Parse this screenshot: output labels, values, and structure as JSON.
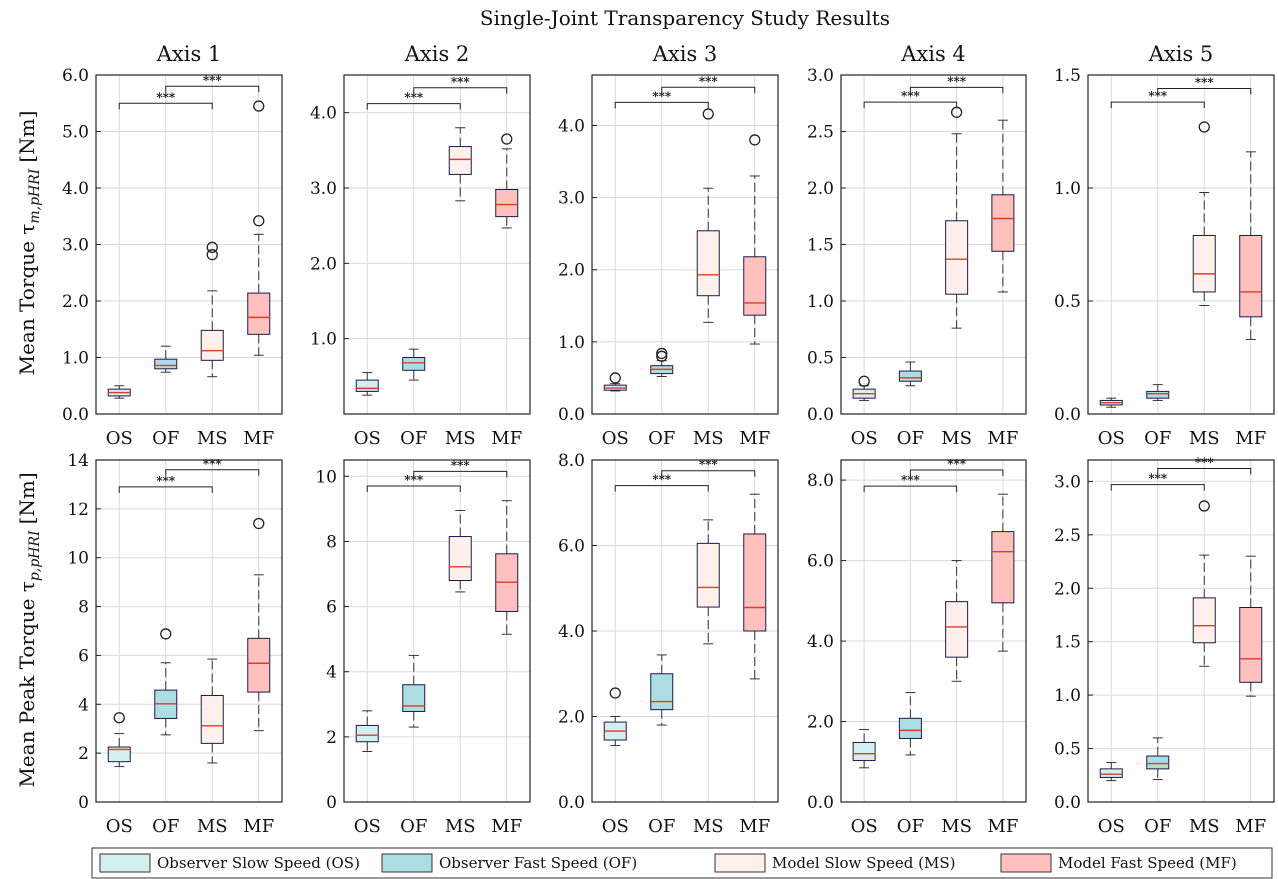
{
  "figure_title": "Single-Joint Transparency Study Results",
  "row_labels": [
    "Mean Torque τ",
    "Mean Peak Torque τ"
  ],
  "row_label_subscripts": [
    "m,pHRI",
    "p,pHRI"
  ],
  "row_label_unit": "[Nm]",
  "legend": [
    {
      "label": "Observer Slow Speed (OS)",
      "color": "#d4efef"
    },
    {
      "label": "Observer Fast Speed (OF)",
      "color": "#acdde2"
    },
    {
      "label": "Model Slow Speed (MS)",
      "color": "#fff0ee"
    },
    {
      "label": "Model Fast Speed (MF)",
      "color": "#ffc1bd"
    }
  ],
  "colors": {
    "median": "#e03a2a",
    "box_edge": "#1a1a4a",
    "whisker": "#333333",
    "grid": "#d9d9d9"
  },
  "chart_data": [
    {
      "type": "box",
      "title": "Axis 1",
      "ylim": [
        0,
        6.0
      ],
      "yticks": [
        0,
        1,
        2,
        3,
        4,
        5,
        6
      ],
      "ytick_labels": [
        "0.0",
        "1.0",
        "2.0",
        "3.0",
        "4.0",
        "5.0",
        "6.0"
      ],
      "categories": [
        "OS",
        "OF",
        "MS",
        "MF"
      ],
      "boxes": [
        {
          "wlo": 0.28,
          "q1": 0.32,
          "med": 0.38,
          "q3": 0.44,
          "whi": 0.5,
          "out": []
        },
        {
          "wlo": 0.74,
          "q1": 0.8,
          "med": 0.86,
          "q3": 0.97,
          "whi": 1.2,
          "out": []
        },
        {
          "wlo": 0.66,
          "q1": 0.95,
          "med": 1.12,
          "q3": 1.48,
          "whi": 2.18,
          "out": [
            2.82,
            2.95
          ]
        },
        {
          "wlo": 1.04,
          "q1": 1.41,
          "med": 1.71,
          "q3": 2.14,
          "whi": 3.18,
          "out": [
            3.42,
            5.45
          ]
        }
      ],
      "sig": [
        {
          "from": 0,
          "to": 2,
          "y": 5.5,
          "label": "***"
        },
        {
          "from": 1,
          "to": 3,
          "y": 5.8,
          "label": "***"
        }
      ]
    },
    {
      "type": "box",
      "title": "Axis 2",
      "ylim": [
        0,
        4.5
      ],
      "yticks": [
        1,
        2,
        3,
        4
      ],
      "ytick_labels": [
        "1.0",
        "2.0",
        "3.0",
        "4.0"
      ],
      "categories": [
        "OS",
        "OF",
        "MS",
        "MF"
      ],
      "boxes": [
        {
          "wlo": 0.25,
          "q1": 0.3,
          "med": 0.34,
          "q3": 0.45,
          "whi": 0.55,
          "out": []
        },
        {
          "wlo": 0.45,
          "q1": 0.58,
          "med": 0.68,
          "q3": 0.75,
          "whi": 0.86,
          "out": []
        },
        {
          "wlo": 2.83,
          "q1": 3.18,
          "med": 3.38,
          "q3": 3.55,
          "whi": 3.8,
          "out": []
        },
        {
          "wlo": 2.47,
          "q1": 2.62,
          "med": 2.78,
          "q3": 2.98,
          "whi": 3.52,
          "out": [
            3.65
          ]
        }
      ],
      "sig": [
        {
          "from": 0,
          "to": 2,
          "y": 4.12,
          "label": "***"
        },
        {
          "from": 1,
          "to": 3,
          "y": 4.33,
          "label": "***"
        }
      ]
    },
    {
      "type": "box",
      "title": "Axis 3",
      "ylim": [
        0,
        4.7
      ],
      "yticks": [
        0,
        1,
        2,
        3,
        4
      ],
      "ytick_labels": [
        "0.0",
        "1.0",
        "2.0",
        "3.0",
        "4.0"
      ],
      "categories": [
        "OS",
        "OF",
        "MS",
        "MF"
      ],
      "boxes": [
        {
          "wlo": 0.32,
          "q1": 0.33,
          "med": 0.36,
          "q3": 0.4,
          "whi": 0.42,
          "out": [
            0.5
          ]
        },
        {
          "wlo": 0.52,
          "q1": 0.56,
          "med": 0.62,
          "q3": 0.67,
          "whi": 0.74,
          "out": [
            0.8,
            0.84
          ]
        },
        {
          "wlo": 1.27,
          "q1": 1.64,
          "med": 1.93,
          "q3": 2.54,
          "whi": 3.13,
          "out": [
            4.16
          ]
        },
        {
          "wlo": 0.97,
          "q1": 1.37,
          "med": 1.54,
          "q3": 2.18,
          "whi": 3.3,
          "out": [
            3.8
          ]
        }
      ],
      "sig": [
        {
          "from": 0,
          "to": 2,
          "y": 4.32,
          "label": "***"
        },
        {
          "from": 1,
          "to": 3,
          "y": 4.53,
          "label": "***"
        }
      ]
    },
    {
      "type": "box",
      "title": "Axis 4",
      "ylim": [
        0,
        3.0
      ],
      "yticks": [
        0,
        0.5,
        1,
        1.5,
        2,
        2.5,
        3
      ],
      "ytick_labels": [
        "0.0",
        "0.5",
        "1.0",
        "1.5",
        "2.0",
        "2.5",
        "3.0"
      ],
      "categories": [
        "OS",
        "OF",
        "MS",
        "MF"
      ],
      "boxes": [
        {
          "wlo": 0.12,
          "q1": 0.14,
          "med": 0.18,
          "q3": 0.22,
          "whi": 0.25,
          "out": [
            0.29
          ]
        },
        {
          "wlo": 0.25,
          "q1": 0.29,
          "med": 0.32,
          "q3": 0.38,
          "whi": 0.46,
          "out": []
        },
        {
          "wlo": 0.76,
          "q1": 1.06,
          "med": 1.37,
          "q3": 1.71,
          "whi": 2.48,
          "out": [
            2.67
          ]
        },
        {
          "wlo": 1.08,
          "q1": 1.44,
          "med": 1.73,
          "q3": 1.94,
          "whi": 2.6,
          "out": []
        }
      ],
      "sig": [
        {
          "from": 0,
          "to": 2,
          "y": 2.76,
          "label": "***"
        },
        {
          "from": 1,
          "to": 3,
          "y": 2.89,
          "label": "***"
        }
      ]
    },
    {
      "type": "box",
      "title": "Axis 5",
      "ylim": [
        0,
        1.5
      ],
      "yticks": [
        0,
        0.5,
        1,
        1.5
      ],
      "ytick_labels": [
        "0.0",
        "0.5",
        "1.0",
        "1.5"
      ],
      "categories": [
        "OS",
        "OF",
        "MS",
        "MF"
      ],
      "boxes": [
        {
          "wlo": 0.03,
          "q1": 0.04,
          "med": 0.05,
          "q3": 0.06,
          "whi": 0.07,
          "out": []
        },
        {
          "wlo": 0.06,
          "q1": 0.07,
          "med": 0.09,
          "q3": 0.1,
          "whi": 0.13,
          "out": []
        },
        {
          "wlo": 0.48,
          "q1": 0.54,
          "med": 0.62,
          "q3": 0.79,
          "whi": 0.98,
          "out": [
            1.27
          ]
        },
        {
          "wlo": 0.33,
          "q1": 0.43,
          "med": 0.54,
          "q3": 0.79,
          "whi": 1.16,
          "out": []
        }
      ],
      "sig": [
        {
          "from": 0,
          "to": 2,
          "y": 1.38,
          "label": "***"
        },
        {
          "from": 1,
          "to": 3,
          "y": 1.44,
          "label": "***"
        }
      ]
    },
    {
      "type": "box",
      "title": "",
      "ylim": [
        0,
        14
      ],
      "yticks": [
        0,
        2,
        4,
        6,
        8,
        10,
        12,
        14
      ],
      "ytick_labels": [
        "0",
        "2",
        "4",
        "6",
        "8",
        "10",
        "12",
        "14"
      ],
      "categories": [
        "OS",
        "OF",
        "MS",
        "MF"
      ],
      "boxes": [
        {
          "wlo": 1.45,
          "q1": 1.65,
          "med": 2.15,
          "q3": 2.25,
          "whi": 2.8,
          "out": [
            3.45
          ]
        },
        {
          "wlo": 2.75,
          "q1": 3.42,
          "med": 4.02,
          "q3": 4.58,
          "whi": 5.7,
          "out": [
            6.88
          ]
        },
        {
          "wlo": 1.6,
          "q1": 2.4,
          "med": 3.12,
          "q3": 4.36,
          "whi": 5.85,
          "out": []
        },
        {
          "wlo": 2.92,
          "q1": 4.5,
          "med": 5.68,
          "q3": 6.7,
          "whi": 9.3,
          "out": [
            11.4
          ]
        }
      ],
      "sig": [
        {
          "from": 0,
          "to": 2,
          "y": 12.9,
          "label": "***"
        },
        {
          "from": 1,
          "to": 3,
          "y": 13.6,
          "label": "***"
        }
      ]
    },
    {
      "type": "box",
      "title": "",
      "ylim": [
        0,
        10.5
      ],
      "yticks": [
        0,
        2,
        4,
        6,
        8,
        10
      ],
      "ytick_labels": [
        "0",
        "2",
        "4",
        "6",
        "8",
        "10"
      ],
      "categories": [
        "OS",
        "OF",
        "MS",
        "MF"
      ],
      "boxes": [
        {
          "wlo": 1.55,
          "q1": 1.85,
          "med": 2.05,
          "q3": 2.35,
          "whi": 2.8,
          "out": []
        },
        {
          "wlo": 2.3,
          "q1": 2.78,
          "med": 2.95,
          "q3": 3.6,
          "whi": 4.5,
          "out": []
        },
        {
          "wlo": 6.45,
          "q1": 6.8,
          "med": 7.22,
          "q3": 8.15,
          "whi": 8.95,
          "out": []
        },
        {
          "wlo": 5.15,
          "q1": 5.85,
          "med": 6.75,
          "q3": 7.62,
          "whi": 9.25,
          "out": []
        }
      ],
      "sig": [
        {
          "from": 0,
          "to": 2,
          "y": 9.7,
          "label": "***"
        },
        {
          "from": 1,
          "to": 3,
          "y": 10.15,
          "label": "***"
        }
      ]
    },
    {
      "type": "box",
      "title": "",
      "ylim": [
        0,
        8.0
      ],
      "yticks": [
        0,
        2,
        4,
        6,
        8
      ],
      "ytick_labels": [
        "0.0",
        "2.0",
        "4.0",
        "6.0",
        "8.0"
      ],
      "categories": [
        "OS",
        "OF",
        "MS",
        "MF"
      ],
      "boxes": [
        {
          "wlo": 1.32,
          "q1": 1.45,
          "med": 1.66,
          "q3": 1.87,
          "whi": 2.0,
          "out": [
            2.55
          ]
        },
        {
          "wlo": 1.8,
          "q1": 2.16,
          "med": 2.35,
          "q3": 3.0,
          "whi": 3.44,
          "out": []
        },
        {
          "wlo": 3.7,
          "q1": 4.56,
          "med": 5.02,
          "q3": 6.05,
          "whi": 6.6,
          "out": []
        },
        {
          "wlo": 2.88,
          "q1": 4.0,
          "med": 4.55,
          "q3": 6.27,
          "whi": 7.2,
          "out": []
        }
      ],
      "sig": [
        {
          "from": 0,
          "to": 2,
          "y": 7.4,
          "label": "***"
        },
        {
          "from": 1,
          "to": 3,
          "y": 7.75,
          "label": "***"
        }
      ]
    },
    {
      "type": "box",
      "title": "",
      "ylim": [
        0,
        8.5
      ],
      "yticks": [
        0,
        2,
        4,
        6,
        8
      ],
      "ytick_labels": [
        "0.0",
        "2.0",
        "4.0",
        "6.0",
        "8.0"
      ],
      "categories": [
        "OS",
        "OF",
        "MS",
        "MF"
      ],
      "boxes": [
        {
          "wlo": 0.85,
          "q1": 1.03,
          "med": 1.2,
          "q3": 1.48,
          "whi": 1.8,
          "out": []
        },
        {
          "wlo": 1.17,
          "q1": 1.58,
          "med": 1.78,
          "q3": 2.08,
          "whi": 2.72,
          "out": []
        },
        {
          "wlo": 3.0,
          "q1": 3.6,
          "med": 4.35,
          "q3": 4.98,
          "whi": 6.0,
          "out": []
        },
        {
          "wlo": 3.75,
          "q1": 4.95,
          "med": 6.22,
          "q3": 6.72,
          "whi": 7.65,
          "out": []
        }
      ],
      "sig": [
        {
          "from": 0,
          "to": 2,
          "y": 7.85,
          "label": "***"
        },
        {
          "from": 1,
          "to": 3,
          "y": 8.25,
          "label": "***"
        }
      ]
    },
    {
      "type": "box",
      "title": "",
      "ylim": [
        0,
        3.2
      ],
      "yticks": [
        0,
        0.5,
        1,
        1.5,
        2,
        2.5,
        3
      ],
      "ytick_labels": [
        "0.0",
        "0.5",
        "1.0",
        "1.5",
        "2.0",
        "2.5",
        "3.0"
      ],
      "categories": [
        "OS",
        "OF",
        "MS",
        "MF"
      ],
      "boxes": [
        {
          "wlo": 0.2,
          "q1": 0.23,
          "med": 0.26,
          "q3": 0.31,
          "whi": 0.37,
          "out": []
        },
        {
          "wlo": 0.21,
          "q1": 0.31,
          "med": 0.36,
          "q3": 0.43,
          "whi": 0.6,
          "out": []
        },
        {
          "wlo": 1.27,
          "q1": 1.49,
          "med": 1.65,
          "q3": 1.91,
          "whi": 2.31,
          "out": [
            2.77
          ]
        },
        {
          "wlo": 0.99,
          "q1": 1.12,
          "med": 1.34,
          "q3": 1.82,
          "whi": 2.3,
          "out": []
        }
      ],
      "sig": [
        {
          "from": 0,
          "to": 2,
          "y": 2.97,
          "label": "***"
        },
        {
          "from": 1,
          "to": 3,
          "y": 3.12,
          "label": "***"
        }
      ]
    }
  ]
}
